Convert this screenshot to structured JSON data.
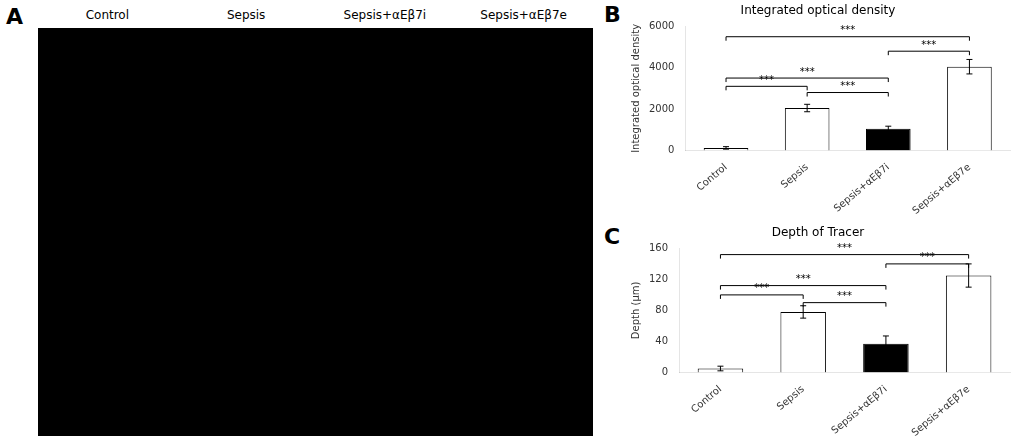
{
  "chart_data": [
    {
      "type": "image",
      "panel_label": "A",
      "categories": [
        "Control",
        "Sepsis",
        "Sepsis+αEβ7i",
        "Sepsis+αEβ7e"
      ]
    },
    {
      "type": "bar",
      "panel_label": "B",
      "title": "Integrated optical density",
      "y_label": "Integrated optical density",
      "categories": [
        "Control",
        "Sepsis",
        "Sepsis+αEβ7i",
        "Sepsis+αEβ7e"
      ],
      "values": [
        120,
        2050,
        1050,
        4050
      ],
      "errors": [
        60,
        180,
        120,
        350
      ],
      "colors": [
        "white",
        "white",
        "black",
        "white"
      ],
      "ylim": [
        0,
        6000
      ],
      "yticks": [
        0,
        2000,
        4000,
        6000
      ],
      "grid": false,
      "annotations": [
        {
          "from": "Control",
          "to": "Sepsis",
          "y": 3100,
          "label": "***"
        },
        {
          "from": "Sepsis",
          "to": "Sepsis+αEβ7i",
          "y": 2800,
          "label": "***"
        },
        {
          "from": "Control",
          "to": "Sepsis+αEβ7i",
          "y": 3500,
          "label": "***"
        },
        {
          "from": "Control",
          "to": "Sepsis+αEβ7e",
          "y": 5500,
          "label": "***"
        },
        {
          "from": "Sepsis+αEβ7i",
          "to": "Sepsis+αEβ7e",
          "y": 4800,
          "label": "***"
        }
      ]
    },
    {
      "type": "bar",
      "panel_label": "C",
      "title": "Depth of Tracer",
      "y_label": "Depth (μm)",
      "categories": [
        "Control",
        "Sepsis",
        "Sepsis+αEβ7i",
        "Sepsis+αEβ7e"
      ],
      "values": [
        5,
        78,
        37,
        125
      ],
      "errors": [
        3,
        8,
        10,
        15
      ],
      "colors": [
        "white",
        "white",
        "black",
        "white"
      ],
      "ylim": [
        0,
        160
      ],
      "yticks": [
        0,
        40,
        80,
        120,
        160
      ],
      "grid": false,
      "annotations": [
        {
          "from": "Control",
          "to": "Sepsis",
          "y": 100,
          "label": "***"
        },
        {
          "from": "Sepsis",
          "to": "Sepsis+αEβ7i",
          "y": 90,
          "label": "***"
        },
        {
          "from": "Control",
          "to": "Sepsis+αEβ7i",
          "y": 112,
          "label": "***"
        },
        {
          "from": "Control",
          "to": "Sepsis+αEβ7e",
          "y": 152,
          "label": "***"
        },
        {
          "from": "Sepsis+αEβ7i",
          "to": "Sepsis+αEβ7e",
          "y": 140,
          "label": "***"
        }
      ]
    }
  ]
}
